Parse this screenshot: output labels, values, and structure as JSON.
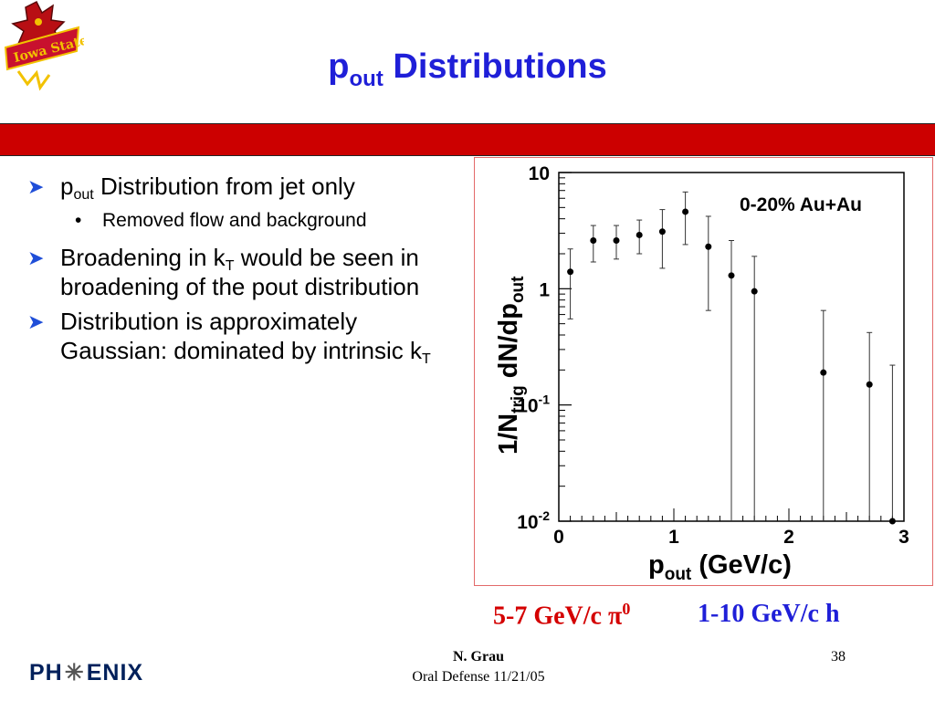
{
  "slide": {
    "title_main": "p",
    "title_sub": "out",
    "title_rest": " Distributions",
    "colors": {
      "title": "#1f1fd8",
      "bar": "#cc0000",
      "bullet_arrow": "#1f4ed8",
      "caption_red": "#d40000",
      "caption_blue": "#1f1fd8"
    }
  },
  "bullets": [
    {
      "pre": "p",
      "sub": "out",
      "post": " Distribution from jet only"
    },
    {
      "text": "Removed flow and background"
    },
    {
      "pre": "Broadening in k",
      "sub": "T",
      "post": " would be seen in broadening of the pout distribution"
    },
    {
      "pre": "Distribution is approximately Gaussian: dominated by intrinsic k",
      "sub": "T",
      "post": ""
    }
  ],
  "captions": {
    "left": "5-7 GeV/c π",
    "left_sup": "0",
    "right": "1-10 GeV/c h"
  },
  "footer": {
    "logo_text_left": "PH",
    "logo_text_right": "ENIX",
    "author": "N. Grau",
    "event": "Oral Defense 11/21/05",
    "page": "38"
  },
  "chart_data": {
    "type": "scatter",
    "annotation": "0-20% Au+Au",
    "xlabel": "p",
    "xlabel_sub": "out",
    "xlabel_unit": " (GeV/c)",
    "ylabel": "1/N",
    "ylabel_sub": "trig",
    "ylabel_rest": " dN/dp",
    "ylabel_sub2": "out",
    "xlim": [
      0,
      3
    ],
    "ylim": [
      0.01,
      10
    ],
    "yscale": "log",
    "x_ticks": [
      "0",
      "1",
      "2",
      "3"
    ],
    "y_ticks": [
      {
        "base": "10",
        "exp": "-2"
      },
      {
        "base": "10",
        "exp": "-1"
      },
      {
        "base": "1",
        "exp": ""
      },
      {
        "base": "10",
        "exp": ""
      }
    ],
    "points": [
      {
        "x": 0.1,
        "y": 1.4,
        "ylow": 0.55,
        "yhigh": 2.2
      },
      {
        "x": 0.3,
        "y": 2.6,
        "ylow": 1.7,
        "yhigh": 3.5
      },
      {
        "x": 0.5,
        "y": 2.6,
        "ylow": 1.8,
        "yhigh": 3.5
      },
      {
        "x": 0.7,
        "y": 2.9,
        "ylow": 2.0,
        "yhigh": 3.9
      },
      {
        "x": 0.9,
        "y": 3.1,
        "ylow": 1.5,
        "yhigh": 4.8
      },
      {
        "x": 1.1,
        "y": 4.6,
        "ylow": 2.4,
        "yhigh": 6.8
      },
      {
        "x": 1.3,
        "y": 2.3,
        "ylow": 0.65,
        "yhigh": 4.2
      },
      {
        "x": 1.5,
        "y": 1.3,
        "ylow": 0.01,
        "yhigh": 2.6
      },
      {
        "x": 1.7,
        "y": 0.95,
        "ylow": 0.01,
        "yhigh": 1.9
      },
      {
        "x": 2.3,
        "y": 0.19,
        "ylow": 0.01,
        "yhigh": 0.65
      },
      {
        "x": 2.7,
        "y": 0.15,
        "ylow": 0.01,
        "yhigh": 0.42
      },
      {
        "x": 2.9,
        "y": 0.01,
        "ylow": 0.01,
        "yhigh": 0.22
      }
    ]
  }
}
